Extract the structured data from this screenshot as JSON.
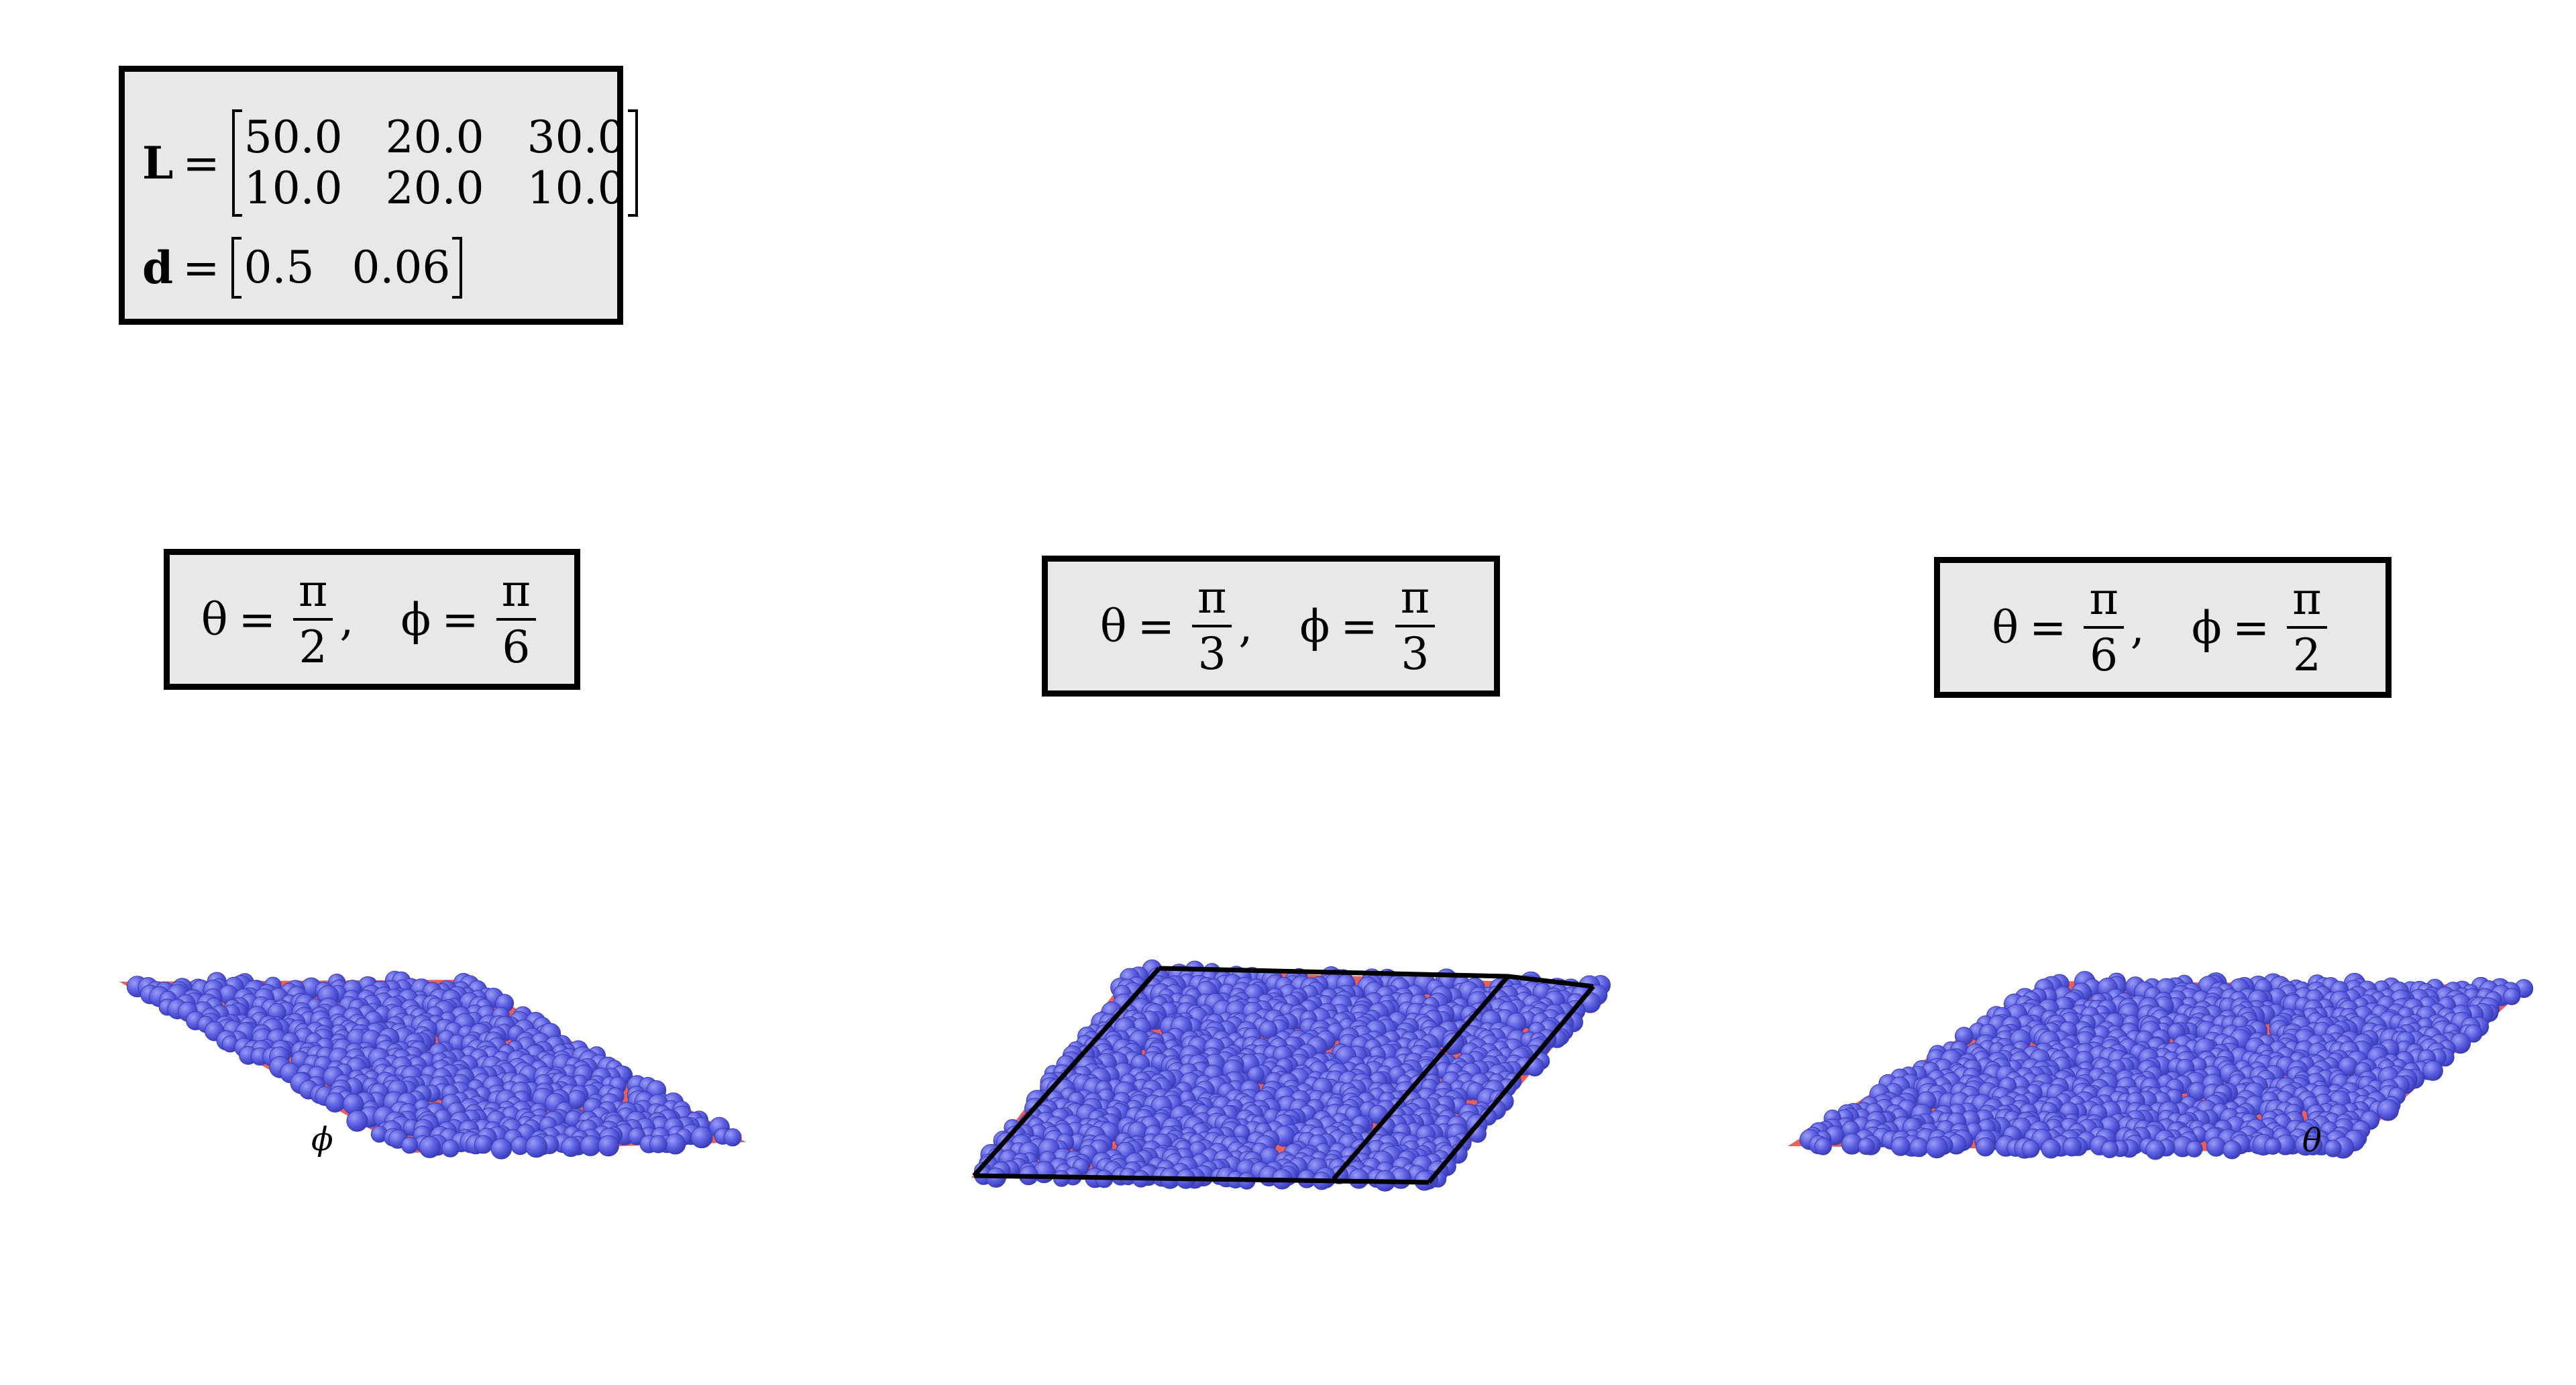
{
  "parameters": {
    "L_symbol": "L",
    "equals": "=",
    "L_matrix": [
      [
        "50.0",
        "20.0",
        "30.0"
      ],
      [
        "10.0",
        "20.0",
        "10.0"
      ]
    ],
    "d_symbol": "d",
    "d_vector": [
      "0.5",
      "0.06"
    ]
  },
  "panels": [
    {
      "theta_num": "π",
      "theta_den": "2",
      "phi_num": "π",
      "phi_den": "6",
      "marker": "ϕ"
    },
    {
      "theta_num": "π",
      "theta_den": "3",
      "phi_num": "π",
      "phi_den": "3",
      "marker": ""
    },
    {
      "theta_num": "π",
      "theta_den": "6",
      "phi_num": "π",
      "phi_den": "2",
      "marker": "θ"
    }
  ],
  "symbols": {
    "theta": "θ",
    "phi": "ϕ",
    "comma": ","
  },
  "colors": {
    "particle": "#5a5ee0",
    "particle_edge": "#3a3cb8",
    "void": "#e8605a",
    "box_fill": "#e8e8e8",
    "frame": "#000000"
  }
}
